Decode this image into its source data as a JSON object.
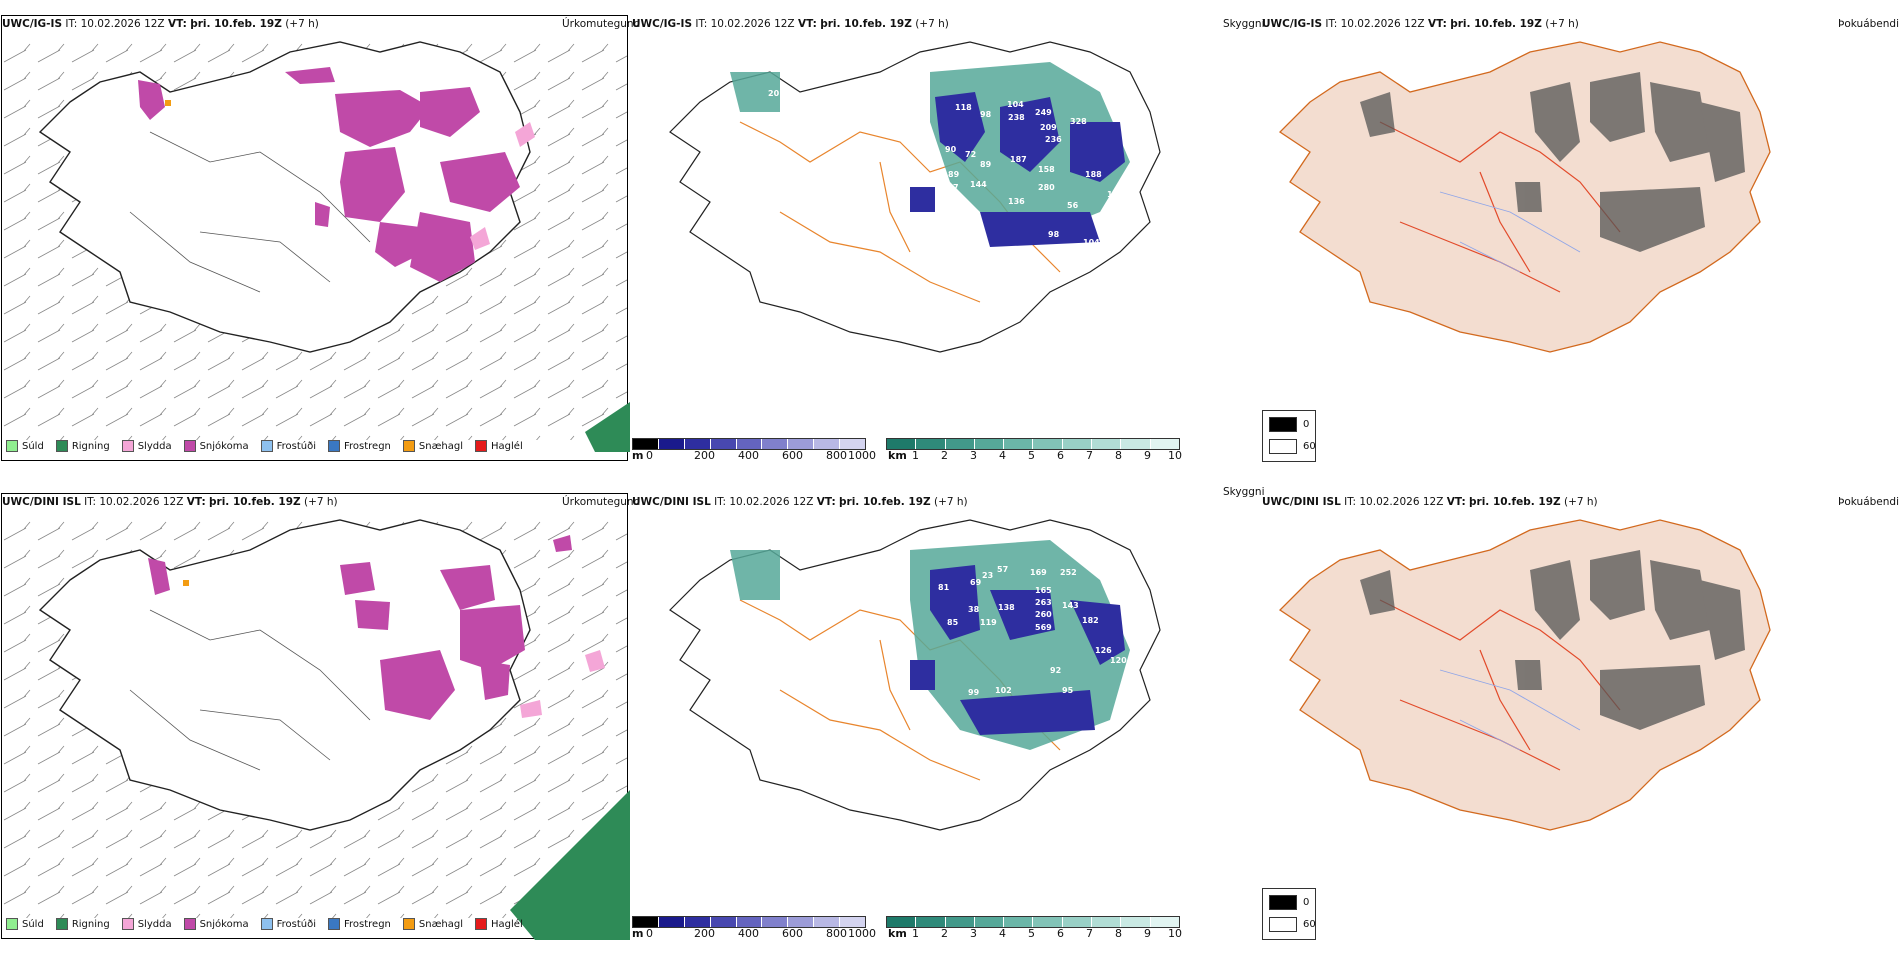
{
  "panels": [
    {
      "model": "UWC/IG-IS",
      "it_label": "IT:",
      "it_value": "10.02.2026 12Z",
      "vt_label": "VT:",
      "vt_value": "þri. 10.feb. 19Z",
      "lead": "(+7 h)",
      "right_title": "Úrkomutegund"
    },
    {
      "model": "UWC/IG-IS",
      "it_label": "IT:",
      "it_value": "10.02.2026 12Z",
      "vt_label": "VT:",
      "vt_value": "þri. 10.feb. 19Z",
      "lead": "(+7 h)",
      "right_title": "Skyggni"
    },
    {
      "model": "UWC/IG-IS",
      "it_label": "IT:",
      "it_value": "10.02.2026 12Z",
      "vt_label": "VT:",
      "vt_value": "þri. 10.feb. 19Z",
      "lead": "(+7 h)",
      "right_title": "Þokuábendi"
    },
    {
      "model": "UWC/DINI ISL",
      "it_label": "IT:",
      "it_value": "10.02.2026 12Z",
      "vt_label": "VT:",
      "vt_value": "þri. 10.feb. 19Z",
      "lead": "(+7 h)",
      "right_title": "Úrkomutegund"
    },
    {
      "model": "UWC/DINI ISL",
      "it_label": "IT:",
      "it_value": "10.02.2026 12Z",
      "vt_label": "VT:",
      "vt_value": "þri. 10.feb. 19Z",
      "lead": "(+7 h)",
      "right_title": "Skyggni"
    },
    {
      "model": "UWC/DINI ISL",
      "it_label": "IT:",
      "it_value": "10.02.2026 12Z",
      "vt_label": "VT:",
      "vt_value": "þri. 10.feb. 19Z",
      "lead": "(+7 h)",
      "right_title": "Þokuábendi"
    }
  ],
  "precip_legend": [
    {
      "label": "Súld",
      "color": "#90ee90"
    },
    {
      "label": "Rigning",
      "color": "#2e8b57"
    },
    {
      "label": "Slydda",
      "color": "#f4a6d7"
    },
    {
      "label": "Snjókoma",
      "color": "#c04aa8"
    },
    {
      "label": "Frostúði",
      "color": "#8ec1ef"
    },
    {
      "label": "Frostregn",
      "color": "#3a78c2"
    },
    {
      "label": "Snæhagl",
      "color": "#f39c12"
    },
    {
      "label": "Haglél",
      "color": "#e51b1b"
    }
  ],
  "visibility": {
    "height_unit": "m",
    "height_ticks": [
      "0",
      "200",
      "400",
      "600",
      "800",
      "1000"
    ],
    "height_colors": [
      "#000000",
      "#1a1a8c",
      "#2e2ea0",
      "#4848b0",
      "#6464bf",
      "#8080cc",
      "#9c9cd8",
      "#b8b8e4",
      "#d4d4f0"
    ],
    "dist_unit": "km",
    "dist_ticks": [
      "1",
      "2",
      "3",
      "4",
      "5",
      "6",
      "7",
      "8",
      "9",
      "10"
    ],
    "dist_colors": [
      "#1e7a6a",
      "#2f8a7a",
      "#42998a",
      "#56a899",
      "#6bb6a8",
      "#82c3b7",
      "#99d0c6",
      "#b1ddd5",
      "#c9e9e3",
      "#e1f4f1"
    ],
    "labels_top": [
      "20",
      "118",
      "98",
      "104",
      "238",
      "249",
      "209",
      "328",
      "236",
      "90",
      "72",
      "89",
      "187",
      "158",
      "89",
      "144",
      "280",
      "188",
      "7",
      "136",
      "56",
      "19",
      "92",
      "86",
      "98",
      "104",
      "134",
      "86",
      "269",
      "99"
    ],
    "labels_bottom": [
      "81",
      "69",
      "23",
      "57",
      "169",
      "252",
      "165",
      "263",
      "143",
      "138",
      "260",
      "85",
      "38",
      "119",
      "569",
      "182",
      "126",
      "99",
      "102",
      "92",
      "95",
      "120"
    ]
  },
  "fog_legend": [
    {
      "label": "0",
      "color": "#000000"
    },
    {
      "label": "60",
      "color": "#ffffff"
    }
  ]
}
